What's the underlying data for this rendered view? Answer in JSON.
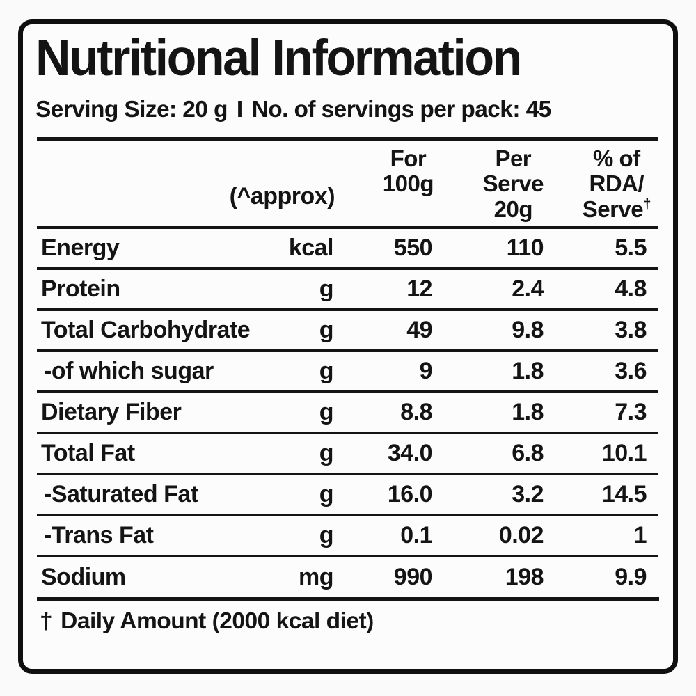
{
  "label": {
    "title": "Nutritional Information",
    "serving": {
      "size_text": "Serving Size: 20 g",
      "separator": "I",
      "servings_text": "No. of servings per pack: 45"
    }
  },
  "table": {
    "header": {
      "approx": "(^approx)",
      "for_line1": "For",
      "for_line2": "100g",
      "serve_line1": "Per",
      "serve_line2": "Serve",
      "serve_line3": "20g",
      "rda_line1": "% of",
      "rda_line2": "RDA/",
      "rda_line3_word": "Serve",
      "rda_superscript": "†"
    },
    "rows": [
      {
        "name": "Energy",
        "unit": "kcal",
        "per_100g": "550",
        "per_serve": "110",
        "rda_percent": "5.5"
      },
      {
        "name": "Protein",
        "unit": "g",
        "per_100g": "12",
        "per_serve": "2.4",
        "rda_percent": "4.8"
      },
      {
        "name": "Total Carbohydrate",
        "unit": "g",
        "per_100g": "49",
        "per_serve": "9.8",
        "rda_percent": "3.8"
      },
      {
        "name": "-of which sugar",
        "unit": "g",
        "per_100g": "9",
        "per_serve": "1.8",
        "rda_percent": "3.6"
      },
      {
        "name": "Dietary Fiber",
        "unit": "g",
        "per_100g": "8.8",
        "per_serve": "1.8",
        "rda_percent": "7.3"
      },
      {
        "name": "Total Fat",
        "unit": "g",
        "per_100g": "34.0",
        "per_serve": "6.8",
        "rda_percent": "10.1"
      },
      {
        "name": "-Saturated Fat",
        "unit": "g",
        "per_100g": "16.0",
        "per_serve": "3.2",
        "rda_percent": "14.5"
      },
      {
        "name": "-Trans Fat",
        "unit": "g",
        "per_100g": "0.1",
        "per_serve": "0.02",
        "rda_percent": "1"
      },
      {
        "name": "Sodium",
        "unit": "mg",
        "per_100g": "990",
        "per_serve": "198",
        "rda_percent": "9.9"
      }
    ],
    "footnote": {
      "dagger": "†",
      "text": "Daily Amount (2000 kcal diet)"
    }
  },
  "colors": {
    "text": "#141414",
    "label_background": "#fcfcfc",
    "page_background": "#fafafa",
    "border": "#0f0f0f"
  }
}
